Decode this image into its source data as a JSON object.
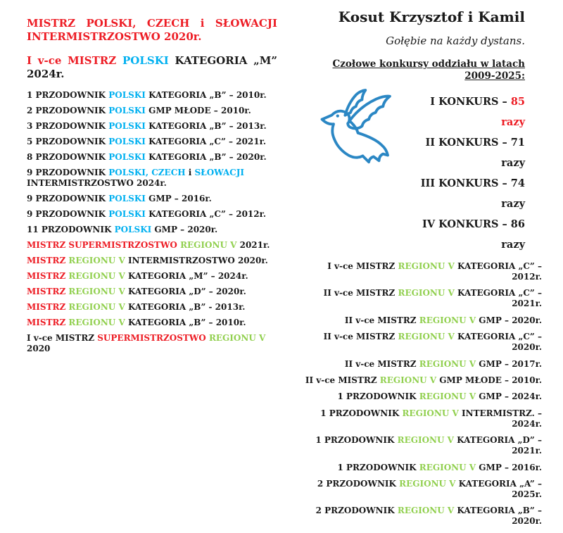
{
  "colors": {
    "red": "#ED1C24",
    "cyan": "#00B0F0",
    "green": "#92D050",
    "black": "#1a1a1a",
    "dove": "#2B87C4"
  },
  "left_column": {
    "heading_primary": {
      "segments": [
        {
          "t": "MISTRZ POLSKI, CZECH i SŁOWACJI INTERMISTRZOSTWO 2020r.",
          "c": "r"
        }
      ]
    },
    "heading_secondary": {
      "segments": [
        {
          "t": "I v-ce MISTRZ ",
          "c": "r"
        },
        {
          "t": "POLSKI",
          "c": "c"
        },
        {
          "t": " KATEGORIA „M” 2024r.",
          "c": "k"
        }
      ]
    },
    "achievements": [
      {
        "segments": [
          {
            "t": "1 PRZODOWNIK ",
            "c": "k"
          },
          {
            "t": "POLSKI",
            "c": "c"
          },
          {
            "t": " KATEGORIA „B” – 2010r.",
            "c": "k"
          }
        ]
      },
      {
        "segments": [
          {
            "t": "2 PRZODOWNIK ",
            "c": "k"
          },
          {
            "t": "POLSKI",
            "c": "c"
          },
          {
            "t": " GMP MŁODE – 2010r.",
            "c": "k"
          }
        ]
      },
      {
        "segments": [
          {
            "t": "3 PRZODOWNIK ",
            "c": "k"
          },
          {
            "t": "POLSKI",
            "c": "c"
          },
          {
            "t": " KATEGORIA „B” – 2013r.",
            "c": "k"
          }
        ]
      },
      {
        "segments": [
          {
            "t": "5 PRZODOWNIK ",
            "c": "k"
          },
          {
            "t": "POLSKI",
            "c": "c"
          },
          {
            "t": " KATEGORIA „C” – 2021r.",
            "c": "k"
          }
        ]
      },
      {
        "segments": [
          {
            "t": "8 PRZODOWNIK ",
            "c": "k"
          },
          {
            "t": "POLSKI",
            "c": "c"
          },
          {
            "t": " KATEGORIA „B” – 2020r.",
            "c": "k"
          }
        ]
      },
      {
        "segments": [
          {
            "t": "9 PRZODOWNIK ",
            "c": "k"
          },
          {
            "t": "POLSKI, CZECH",
            "c": "c"
          },
          {
            "t": " i ",
            "c": "k"
          },
          {
            "t": "SŁOWACJI",
            "c": "c"
          },
          {
            "t": " INTERMISTRZOSTWO 2024r.",
            "c": "k"
          }
        ]
      },
      {
        "segments": [
          {
            "t": "9 PRZODOWNIK ",
            "c": "k"
          },
          {
            "t": "POLSKI",
            "c": "c"
          },
          {
            "t": " GMP – 2016r.",
            "c": "k"
          }
        ]
      },
      {
        "segments": [
          {
            "t": "9 PRZODOWNIK ",
            "c": "k"
          },
          {
            "t": "POLSKI",
            "c": "c"
          },
          {
            "t": " KATEGORIA „C” – 2012r.",
            "c": "k"
          }
        ]
      },
      {
        "segments": [
          {
            "t": "11 PRZODOWNIK ",
            "c": "k"
          },
          {
            "t": "POLSKI",
            "c": "c"
          },
          {
            "t": " GMP – 2020r.",
            "c": "k"
          }
        ]
      },
      {
        "segments": [
          {
            "t": "MISTRZ SUPERMISTRZOSTWO ",
            "c": "r"
          },
          {
            "t": "REGIONU V",
            "c": "g"
          },
          {
            "t": " 2021r.",
            "c": "k"
          }
        ]
      },
      {
        "segments": [
          {
            "t": "MISTRZ ",
            "c": "r"
          },
          {
            "t": "REGIONU V",
            "c": "g"
          },
          {
            "t": " INTERMISTRZOSTWO 2020r.",
            "c": "k"
          }
        ]
      },
      {
        "segments": [
          {
            "t": "MISTRZ ",
            "c": "r"
          },
          {
            "t": "REGIONU V",
            "c": "g"
          },
          {
            "t": " KATEGORIA „M” – 2024r.",
            "c": "k"
          }
        ]
      },
      {
        "segments": [
          {
            "t": "MISTRZ ",
            "c": "r"
          },
          {
            "t": "REGIONU V",
            "c": "g"
          },
          {
            "t": " KATEGORIA „D” – 2020r.",
            "c": "k"
          }
        ]
      },
      {
        "segments": [
          {
            "t": "MISTRZ ",
            "c": "r"
          },
          {
            "t": "REGIONU V",
            "c": "g"
          },
          {
            "t": " KATEGORIA „B” - 2013r.",
            "c": "k"
          }
        ]
      },
      {
        "segments": [
          {
            "t": "MISTRZ ",
            "c": "r"
          },
          {
            "t": "REGIONU V",
            "c": "g"
          },
          {
            "t": " KATEGORIA „B” – 2010r.",
            "c": "k"
          }
        ]
      },
      {
        "segments": [
          {
            "t": "I v-ce MISTRZ ",
            "c": "k"
          },
          {
            "t": "SUPERMISTRZOSTWO",
            "c": "r"
          },
          {
            "t": " ",
            "c": "k"
          },
          {
            "t": "REGIONU V",
            "c": "g"
          },
          {
            "t": " 2020",
            "c": "k"
          }
        ]
      }
    ]
  },
  "right_column": {
    "title": "Kosut Krzysztof i Kamil",
    "tagline": "Gołębie na każdy dystans.",
    "section_heading": "Czołowe konkursy oddziału w latach 2009-2025:",
    "dove_icon": "dove-outline",
    "contest_results": [
      {
        "segments": [
          {
            "t": "I KONKURS – ",
            "c": "k"
          },
          {
            "t": "85 razy",
            "c": "r"
          }
        ]
      },
      {
        "segments": [
          {
            "t": "II KONKURS – 71 razy",
            "c": "k"
          }
        ]
      },
      {
        "segments": [
          {
            "t": "III KONKURS – 74 razy",
            "c": "k"
          }
        ]
      },
      {
        "segments": [
          {
            "t": "IV KONKURS – 86 razy",
            "c": "k"
          }
        ]
      }
    ],
    "achievements": [
      {
        "segments": [
          {
            "t": "I v-ce MISTRZ ",
            "c": "k"
          },
          {
            "t": "REGIONU V",
            "c": "g"
          },
          {
            "t": " KATEGORIA „C” – 2012r.",
            "c": "k"
          }
        ]
      },
      {
        "segments": [
          {
            "t": "II v-ce MISTRZ ",
            "c": "k"
          },
          {
            "t": "REGIONU V",
            "c": "g"
          },
          {
            "t": " KATEGORIA „C” – 2021r.",
            "c": "k"
          }
        ]
      },
      {
        "segments": [
          {
            "t": "II v-ce MISTRZ ",
            "c": "k"
          },
          {
            "t": "REGIONU V",
            "c": "g"
          },
          {
            "t": " GMP – 2020r.",
            "c": "k"
          }
        ]
      },
      {
        "segments": [
          {
            "t": "II v-ce MISTRZ ",
            "c": "k"
          },
          {
            "t": "REGIONU V",
            "c": "g"
          },
          {
            "t": " KATEGORIA „C” – 2020r.",
            "c": "k"
          }
        ]
      },
      {
        "segments": [
          {
            "t": "II v-ce MISTRZ ",
            "c": "k"
          },
          {
            "t": "REGIONU V",
            "c": "g"
          },
          {
            "t": " GMP – 2017r.",
            "c": "k"
          }
        ]
      },
      {
        "segments": [
          {
            "t": "II v-ce MISTRZ ",
            "c": "k"
          },
          {
            "t": "REGIONU V",
            "c": "g"
          },
          {
            "t": " GMP MŁODE – 2010r.",
            "c": "k"
          }
        ]
      },
      {
        "segments": [
          {
            "t": "1 PRZODOWNIK ",
            "c": "k"
          },
          {
            "t": "REGIONU V",
            "c": "g"
          },
          {
            "t": " GMP – 2024r.",
            "c": "k"
          }
        ]
      },
      {
        "segments": [
          {
            "t": "1 PRZODOWNIK ",
            "c": "k"
          },
          {
            "t": "REGIONU V",
            "c": "g"
          },
          {
            "t": " INTERMISTRZ. – 2024r.",
            "c": "k"
          }
        ]
      },
      {
        "segments": [
          {
            "t": "1 PRZODOWNIK ",
            "c": "k"
          },
          {
            "t": "REGIONU V",
            "c": "g"
          },
          {
            "t": " KATEGORIA „D” – 2021r.",
            "c": "k"
          }
        ]
      },
      {
        "segments": [
          {
            "t": "1 PRZODOWNIK ",
            "c": "k"
          },
          {
            "t": "REGIONU V",
            "c": "g"
          },
          {
            "t": " GMP – 2016r.",
            "c": "k"
          }
        ]
      },
      {
        "segments": [
          {
            "t": "2 PRZODOWNIK ",
            "c": "k"
          },
          {
            "t": "REGIONU V",
            "c": "g"
          },
          {
            "t": " KATEGORIA „A” – 2025r.",
            "c": "k"
          }
        ]
      },
      {
        "segments": [
          {
            "t": "2 PRZODOWNIK ",
            "c": "k"
          },
          {
            "t": "REGIONU V",
            "c": "g"
          },
          {
            "t": " KATEGORIA „B” – 2020r.",
            "c": "k"
          }
        ]
      }
    ]
  }
}
